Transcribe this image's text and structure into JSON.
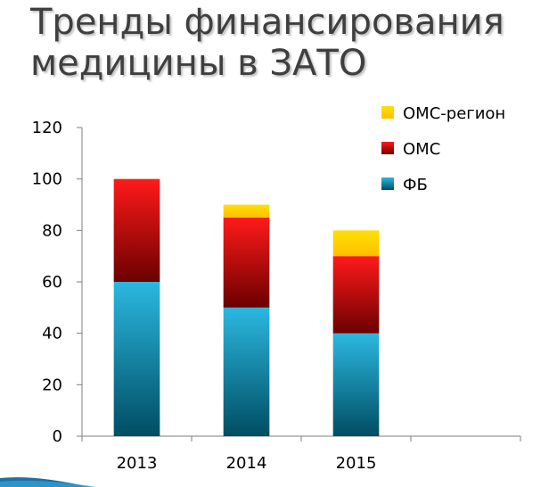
{
  "slide": {
    "title_line1": "Тренды финансирования",
    "title_line2": "медицины в ЗАТО"
  },
  "chart_data": {
    "type": "bar",
    "stacked": true,
    "categories": [
      "2013",
      "2014",
      "2015"
    ],
    "series": [
      {
        "name": "ФБ",
        "values": [
          60,
          50,
          40
        ],
        "color_top": "#2bb8e0",
        "color_bottom": "#004d63"
      },
      {
        "name": "ОМС",
        "values": [
          40,
          35,
          30
        ],
        "color_top": "#ff1a1a",
        "color_bottom": "#6b0000"
      },
      {
        "name": "ОМС-регион",
        "values": [
          0,
          5,
          10
        ],
        "color_top": "#ffe000",
        "color_bottom": "#ffc000"
      }
    ],
    "category_slots": 4,
    "ylim": [
      0,
      120
    ],
    "yticks": [
      0,
      20,
      40,
      60,
      80,
      100,
      120
    ],
    "grid": false,
    "legend_position": "top-right",
    "title": "",
    "xlabel": "",
    "ylabel": ""
  }
}
